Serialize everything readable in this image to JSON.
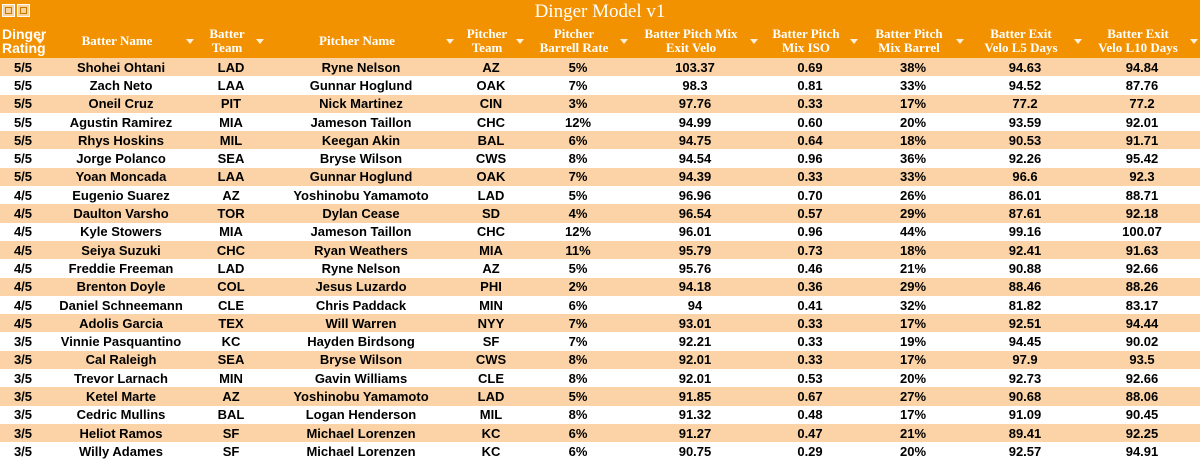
{
  "window": {
    "title": "Dinger Model v1"
  },
  "icons": [
    "table-view-icon",
    "sheet-view-icon"
  ],
  "colors": {
    "header_bg": "#f39200",
    "band": "#fbd3a6",
    "text": "#000000"
  },
  "columns": [
    [
      "Dinger",
      "Rating"
    ],
    [
      "Batter Name"
    ],
    [
      "Batter",
      "Team"
    ],
    [
      "Pitcher Name"
    ],
    [
      "Pitcher",
      "Team"
    ],
    [
      "Pitcher",
      "Barrell Rate"
    ],
    [
      "Batter Pitch Mix",
      "Exit Velo"
    ],
    [
      "Batter Pitch",
      "Mix ISO"
    ],
    [
      "Batter Pitch",
      "Mix Barrel"
    ],
    [
      "Batter Exit",
      "Velo L5 Days"
    ],
    [
      "Batter Exit",
      "Velo L10 Days"
    ]
  ],
  "rows": [
    [
      "5/5",
      "Shohei Ohtani",
      "LAD",
      "Ryne Nelson",
      "AZ",
      "5%",
      "103.37",
      "0.69",
      "38%",
      "94.63",
      "94.84"
    ],
    [
      "5/5",
      "Zach Neto",
      "LAA",
      "Gunnar Hoglund",
      "OAK",
      "7%",
      "98.3",
      "0.81",
      "33%",
      "94.52",
      "87.76"
    ],
    [
      "5/5",
      "Oneil Cruz",
      "PIT",
      "Nick Martinez",
      "CIN",
      "3%",
      "97.76",
      "0.33",
      "17%",
      "77.2",
      "77.2"
    ],
    [
      "5/5",
      "Agustin Ramirez",
      "MIA",
      "Jameson Taillon",
      "CHC",
      "12%",
      "94.99",
      "0.60",
      "20%",
      "93.59",
      "92.01"
    ],
    [
      "5/5",
      "Rhys Hoskins",
      "MIL",
      "Keegan Akin",
      "BAL",
      "6%",
      "94.75",
      "0.64",
      "18%",
      "90.53",
      "91.71"
    ],
    [
      "5/5",
      "Jorge Polanco",
      "SEA",
      "Bryse Wilson",
      "CWS",
      "8%",
      "94.54",
      "0.96",
      "36%",
      "92.26",
      "95.42"
    ],
    [
      "5/5",
      "Yoan Moncada",
      "LAA",
      "Gunnar Hoglund",
      "OAK",
      "7%",
      "94.39",
      "0.33",
      "33%",
      "96.6",
      "92.3"
    ],
    [
      "4/5",
      "Eugenio Suarez",
      "AZ",
      "Yoshinobu Yamamoto",
      "LAD",
      "5%",
      "96.96",
      "0.70",
      "26%",
      "86.01",
      "88.71"
    ],
    [
      "4/5",
      "Daulton Varsho",
      "TOR",
      "Dylan Cease",
      "SD",
      "4%",
      "96.54",
      "0.57",
      "29%",
      "87.61",
      "92.18"
    ],
    [
      "4/5",
      "Kyle Stowers",
      "MIA",
      "Jameson Taillon",
      "CHC",
      "12%",
      "96.01",
      "0.96",
      "44%",
      "99.16",
      "100.07"
    ],
    [
      "4/5",
      "Seiya Suzuki",
      "CHC",
      "Ryan Weathers",
      "MIA",
      "11%",
      "95.79",
      "0.73",
      "18%",
      "92.41",
      "91.63"
    ],
    [
      "4/5",
      "Freddie Freeman",
      "LAD",
      "Ryne Nelson",
      "AZ",
      "5%",
      "95.76",
      "0.46",
      "21%",
      "90.88",
      "92.66"
    ],
    [
      "4/5",
      "Brenton Doyle",
      "COL",
      "Jesus Luzardo",
      "PHI",
      "2%",
      "94.18",
      "0.36",
      "29%",
      "88.46",
      "88.26"
    ],
    [
      "4/5",
      "Daniel Schneemann",
      "CLE",
      "Chris Paddack",
      "MIN",
      "6%",
      "94",
      "0.41",
      "32%",
      "81.82",
      "83.17"
    ],
    [
      "4/5",
      "Adolis Garcia",
      "TEX",
      "Will Warren",
      "NYY",
      "7%",
      "93.01",
      "0.33",
      "17%",
      "92.51",
      "94.44"
    ],
    [
      "3/5",
      "Vinnie Pasquantino",
      "KC",
      "Hayden Birdsong",
      "SF",
      "7%",
      "92.21",
      "0.33",
      "19%",
      "94.45",
      "90.02"
    ],
    [
      "3/5",
      "Cal Raleigh",
      "SEA",
      "Bryse Wilson",
      "CWS",
      "8%",
      "92.01",
      "0.33",
      "17%",
      "97.9",
      "93.5"
    ],
    [
      "3/5",
      "Trevor Larnach",
      "MIN",
      "Gavin Williams",
      "CLE",
      "8%",
      "92.01",
      "0.53",
      "20%",
      "92.73",
      "92.66"
    ],
    [
      "3/5",
      "Ketel Marte",
      "AZ",
      "Yoshinobu Yamamoto",
      "LAD",
      "5%",
      "91.85",
      "0.67",
      "27%",
      "90.68",
      "88.06"
    ],
    [
      "3/5",
      "Cedric Mullins",
      "BAL",
      "Logan Henderson",
      "MIL",
      "8%",
      "91.32",
      "0.48",
      "17%",
      "91.09",
      "90.45"
    ],
    [
      "3/5",
      "Heliot Ramos",
      "SF",
      "Michael Lorenzen",
      "KC",
      "6%",
      "91.27",
      "0.47",
      "21%",
      "89.41",
      "92.25"
    ],
    [
      "3/5",
      "Willy Adames",
      "SF",
      "Michael Lorenzen",
      "KC",
      "6%",
      "90.75",
      "0.29",
      "20%",
      "92.57",
      "94.91"
    ]
  ]
}
